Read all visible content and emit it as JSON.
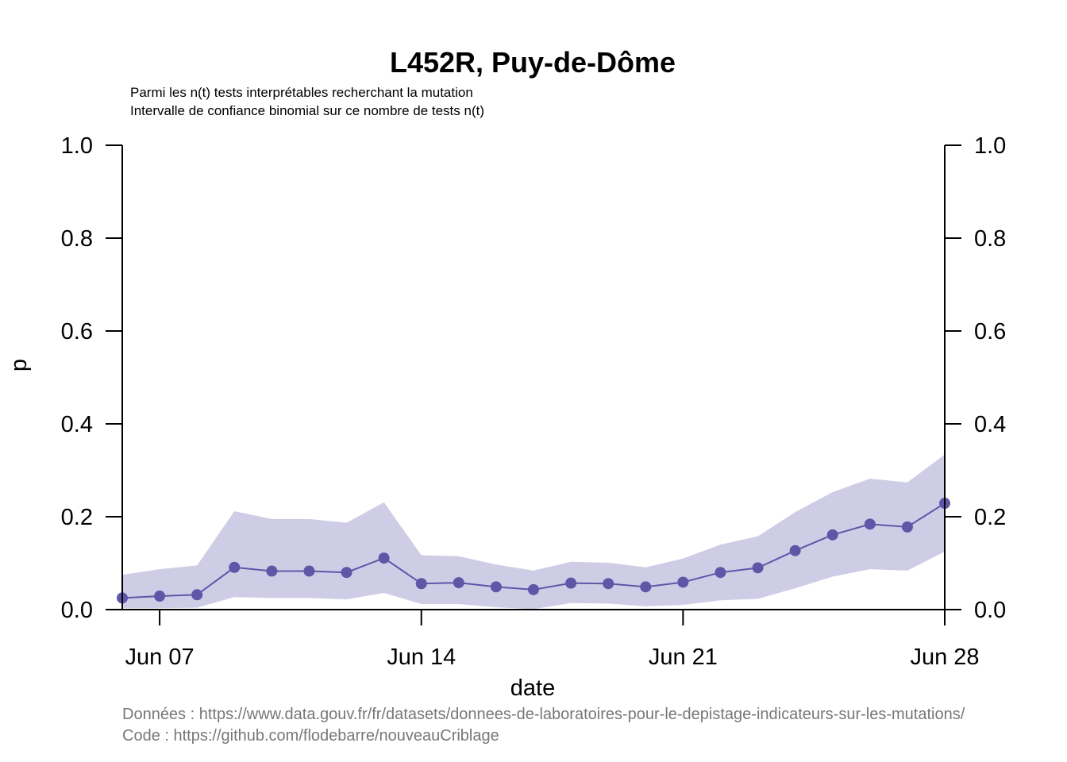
{
  "chart_data": {
    "type": "line",
    "title": "L452R, Puy-de-Dôme",
    "subtitle_lines": [
      "Parmi les n(t) tests interprétables recherchant la mutation",
      "Intervalle de confiance binomial sur ce nombre de tests n(t)"
    ],
    "xlabel": "date",
    "ylabel": "p",
    "x_dates": [
      "2021-06-06",
      "2021-06-07",
      "2021-06-08",
      "2021-06-09",
      "2021-06-10",
      "2021-06-11",
      "2021-06-12",
      "2021-06-13",
      "2021-06-14",
      "2021-06-15",
      "2021-06-16",
      "2021-06-17",
      "2021-06-18",
      "2021-06-19",
      "2021-06-20",
      "2021-06-21",
      "2021-06-22",
      "2021-06-23",
      "2021-06-24",
      "2021-06-25",
      "2021-06-26",
      "2021-06-27",
      "2021-06-28"
    ],
    "xlim": [
      "2021-06-06",
      "2021-06-28"
    ],
    "x_ticks": [
      {
        "date": "2021-06-07",
        "label": "Jun 07"
      },
      {
        "date": "2021-06-14",
        "label": "Jun 14"
      },
      {
        "date": "2021-06-21",
        "label": "Jun 21"
      },
      {
        "date": "2021-06-28",
        "label": "Jun 28"
      }
    ],
    "ylim": [
      0,
      1
    ],
    "y_ticks": [
      "0.0",
      "0.2",
      "0.4",
      "0.6",
      "0.8",
      "1.0"
    ],
    "right_axis": true,
    "grid": false,
    "legend": "none",
    "series": [
      {
        "values": [
          0.025,
          0.029,
          0.032,
          0.091,
          0.083,
          0.083,
          0.08,
          0.111,
          0.056,
          0.058,
          0.049,
          0.043,
          0.057,
          0.056,
          0.049,
          0.059,
          0.08,
          0.09,
          0.127,
          0.161,
          0.184,
          0.178,
          0.229
        ],
        "ci_lower": [
          0.003,
          0.003,
          0.004,
          0.027,
          0.025,
          0.025,
          0.022,
          0.036,
          0.012,
          0.012,
          0.005,
          0.001,
          0.014,
          0.013,
          0.007,
          0.01,
          0.02,
          0.023,
          0.046,
          0.071,
          0.087,
          0.084,
          0.125
        ],
        "ci_upper": [
          0.075,
          0.087,
          0.095,
          0.212,
          0.195,
          0.195,
          0.187,
          0.231,
          0.117,
          0.115,
          0.097,
          0.084,
          0.103,
          0.101,
          0.091,
          0.11,
          0.14,
          0.158,
          0.21,
          0.253,
          0.282,
          0.274,
          0.334
        ]
      }
    ],
    "colors": {
      "line": "#5f56a8",
      "band": "#cfcde6",
      "axis": "#000000",
      "source_text": "#777777"
    }
  },
  "footer": {
    "data_source": "Données : https://www.data.gouv.fr/fr/datasets/donnees-de-laboratoires-pour-le-depistage-indicateurs-sur-les-mutations/",
    "code_source": "Code : https://github.com/flodebarre/nouveauCriblage"
  }
}
